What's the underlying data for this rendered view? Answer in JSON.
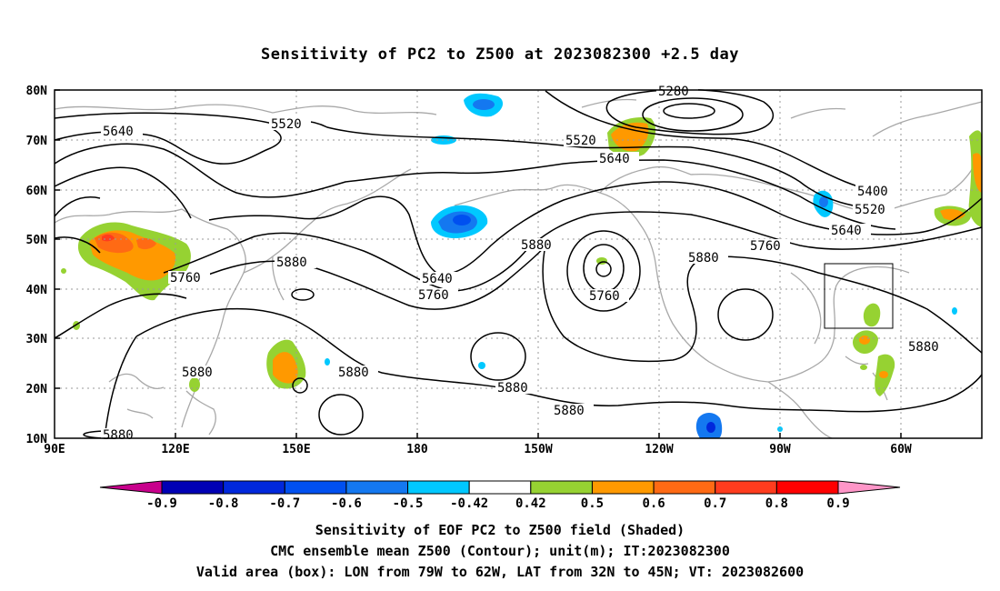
{
  "title": "Sensitivity of PC2 to Z500 at 2023082300 +2.5 day",
  "lat_labels": [
    "80N",
    "70N",
    "60N",
    "50N",
    "40N",
    "30N",
    "20N",
    "10N"
  ],
  "lon_labels": [
    "90E",
    "120E",
    "150E",
    "180",
    "150W",
    "120W",
    "90W",
    "60W"
  ],
  "contour_labels": [
    "5280",
    "5520",
    "5520",
    "5640",
    "5640",
    "5400",
    "5520",
    "5640",
    "5760",
    "5880",
    "5880",
    "5640",
    "5760",
    "5880",
    "5760",
    "5880",
    "5880",
    "5880",
    "5880",
    "5880",
    "5880",
    "5760"
  ],
  "colorbar": {
    "ticks": [
      "-0.9",
      "-0.8",
      "-0.7",
      "-0.6",
      "-0.5",
      "-0.42",
      "0.42",
      "0.5",
      "0.6",
      "0.7",
      "0.8",
      "0.9"
    ],
    "colors": [
      "#c8008c",
      "#0000b4",
      "#0028dc",
      "#0050f0",
      "#1478f0",
      "#00c8ff",
      "#ffffff",
      "#96d232",
      "#ff9900",
      "#ff6a14",
      "#ff3c1e",
      "#ff0000",
      "#ff96c8"
    ]
  },
  "valid_box": {
    "lon_from": "79W",
    "lon_to": "62W",
    "lat_from": "32N",
    "lat_to": "45N"
  },
  "footer": {
    "line1": "Sensitivity of EOF PC2 to Z500 field (Shaded)",
    "line2": "CMC ensemble mean Z500 (Contour); unit(m); IT:2023082300",
    "line3": "Valid area (box): LON from 79W to 62W, LAT from 32N to 45N; VT: 2023082600"
  }
}
